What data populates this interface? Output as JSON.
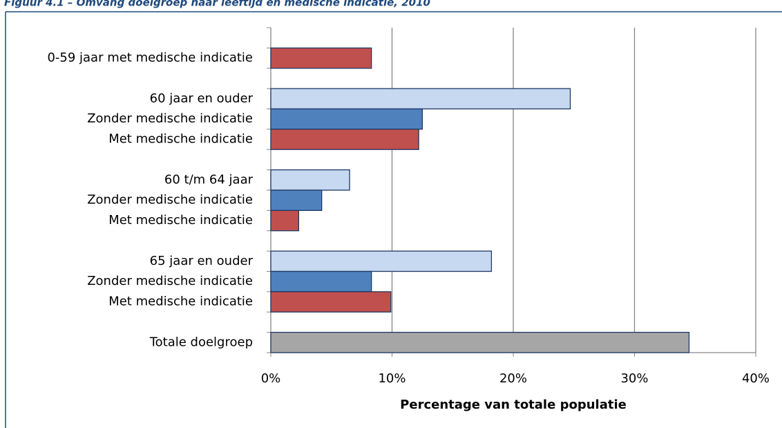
{
  "chart_data": {
    "type": "bar",
    "orientation": "horizontal",
    "title": "Figuur 4.1 – Omvang doelgroep naar leeftijd en medische indicatie, 2010",
    "categories": [
      null,
      "0-59 jaar met medische indicatie",
      null,
      "60 jaar en ouder",
      "Zonder medische indicatie",
      "Met medische indicatie",
      null,
      "60 t/m 64 jaar",
      "Zonder medische indicatie",
      "Met medische indicatie",
      null,
      "65 jaar en ouder",
      "Zonder medische indicatie",
      "Met medische indicatie",
      null,
      "Totale doelgroep"
    ],
    "values": [
      null,
      8.3,
      null,
      24.7,
      12.5,
      12.2,
      null,
      6.5,
      4.2,
      2.3,
      null,
      18.2,
      8.3,
      9.9,
      null,
      34.5
    ],
    "colors": [
      null,
      "#c0504d",
      null,
      "#c6d9f1",
      "#4f81bd",
      "#c0504d",
      null,
      "#c6d9f1",
      "#4f81bd",
      "#c0504d",
      null,
      "#c6d9f1",
      "#4f81bd",
      "#c0504d",
      null,
      "#a6a6a6"
    ],
    "xlim": [
      0,
      40
    ],
    "xticks": [
      {
        "value": 0,
        "label": "0%"
      },
      {
        "value": 10,
        "label": "10%"
      },
      {
        "value": 20,
        "label": "20%"
      },
      {
        "value": 30,
        "label": "30%"
      },
      {
        "value": 40,
        "label": "40%"
      }
    ],
    "xlabel": "Percentage van totale populatie",
    "grid": true
  }
}
